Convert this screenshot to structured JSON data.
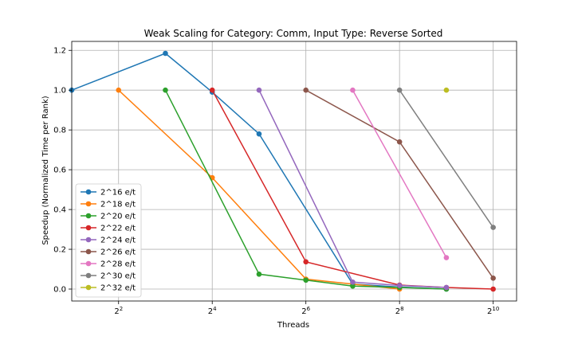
{
  "chart_data": {
    "type": "line",
    "title": "Weak Scaling for Category: Comm, Input Type: Reverse Sorted",
    "xlabel": "Threads",
    "ylabel": "Speedup (Normalized Time per Rank)",
    "x_scale": "log2",
    "xlim": [
      2,
      1448
    ],
    "ylim": [
      -0.06,
      1.245
    ],
    "xticks": [
      4,
      16,
      64,
      256,
      1024
    ],
    "xtick_labels": [
      {
        "base": "2",
        "exp": "2"
      },
      {
        "base": "2",
        "exp": "4"
      },
      {
        "base": "2",
        "exp": "6"
      },
      {
        "base": "2",
        "exp": "8"
      },
      {
        "base": "2",
        "exp": "10"
      }
    ],
    "yticks": [
      0.0,
      0.2,
      0.4,
      0.6,
      0.8,
      1.0,
      1.2
    ],
    "ytick_labels": [
      "0.0",
      "0.2",
      "0.4",
      "0.6",
      "0.8",
      "1.0",
      "1.2"
    ],
    "grid": true,
    "legend_position": "lower-left",
    "series": [
      {
        "name": "2^16 e/t",
        "color": "#1f77b4",
        "x": [
          2,
          8,
          16,
          32,
          128,
          256,
          512
        ],
        "y": [
          1.0,
          1.185,
          0.99,
          0.78,
          0.025,
          0.01,
          0.0
        ]
      },
      {
        "name": "2^18 e/t",
        "color": "#ff7f0e",
        "x": [
          4,
          16,
          64,
          256
        ],
        "y": [
          1.0,
          0.56,
          0.05,
          0.0
        ]
      },
      {
        "name": "2^20 e/t",
        "color": "#2ca02c",
        "x": [
          8,
          32,
          64,
          128,
          256,
          512
        ],
        "y": [
          1.0,
          0.075,
          0.045,
          0.015,
          0.008,
          0.0
        ]
      },
      {
        "name": "2^22 e/t",
        "color": "#d62728",
        "x": [
          16,
          64,
          256,
          512,
          1024
        ],
        "y": [
          1.0,
          0.137,
          0.02,
          0.008,
          0.0
        ]
      },
      {
        "name": "2^24 e/t",
        "color": "#9467bd",
        "x": [
          32,
          128,
          256,
          512
        ],
        "y": [
          1.0,
          0.035,
          0.018,
          0.008
        ]
      },
      {
        "name": "2^26 e/t",
        "color": "#8c564b",
        "x": [
          64,
          256,
          1024
        ],
        "y": [
          1.0,
          0.74,
          0.055
        ]
      },
      {
        "name": "2^28 e/t",
        "color": "#e377c2",
        "x": [
          128,
          512
        ],
        "y": [
          1.0,
          0.158
        ]
      },
      {
        "name": "2^30 e/t",
        "color": "#7f7f7f",
        "x": [
          256,
          1024
        ],
        "y": [
          1.0,
          0.31
        ]
      },
      {
        "name": "2^32 e/t",
        "color": "#bcbd22",
        "x": [
          512
        ],
        "y": [
          1.0
        ]
      }
    ]
  }
}
